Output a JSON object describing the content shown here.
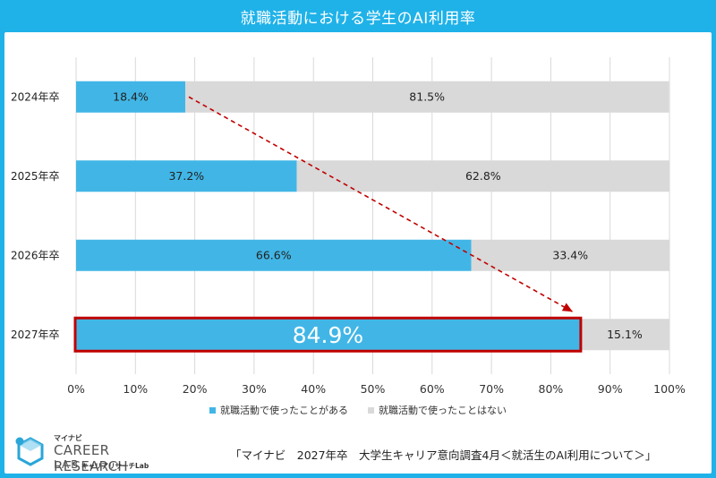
{
  "header": {
    "title": "就職活動における学生のAI利用率"
  },
  "chart_data": {
    "type": "bar",
    "orientation": "horizontal",
    "stacked": true,
    "title": "就職活動における学生のAI利用率",
    "categories": [
      "2024年卒",
      "2025年卒",
      "2026年卒",
      "2027年卒"
    ],
    "series": [
      {
        "name": "就職活動で使ったことがある",
        "values": [
          18.4,
          37.2,
          66.6,
          84.9
        ],
        "labels": [
          "18.4%",
          "37.2%",
          "66.6%",
          "84.9%"
        ],
        "color": "#41b6e6"
      },
      {
        "name": "就職活動で使ったことはない",
        "values": [
          81.5,
          62.8,
          33.4,
          15.1
        ],
        "labels": [
          "81.5%",
          "62.8%",
          "33.4%",
          "15.1%"
        ],
        "color": "#d9d9d9"
      }
    ],
    "xlim": [
      0,
      100
    ],
    "xticks": [
      "0%",
      "10%",
      "20%",
      "30%",
      "40%",
      "50%",
      "60%",
      "70%",
      "80%",
      "90%",
      "100%"
    ],
    "highlight_category": "2027年卒",
    "highlight_color": "#c00000",
    "trend_arrow": {
      "from_category": "2024年卒",
      "to_category": "2027年卒",
      "color": "#c00000",
      "style": "dashed"
    },
    "grid": true,
    "legend_position": "bottom"
  },
  "source": "「マイナビ　2027年卒　大学生キャリア意向調査4月＜就活生のAI利用について＞」",
  "logo": {
    "top": "マイナビ",
    "main": "CAREER RESEARCH",
    "lab": "LAB",
    "sub": "キャリアリサーチLab"
  }
}
